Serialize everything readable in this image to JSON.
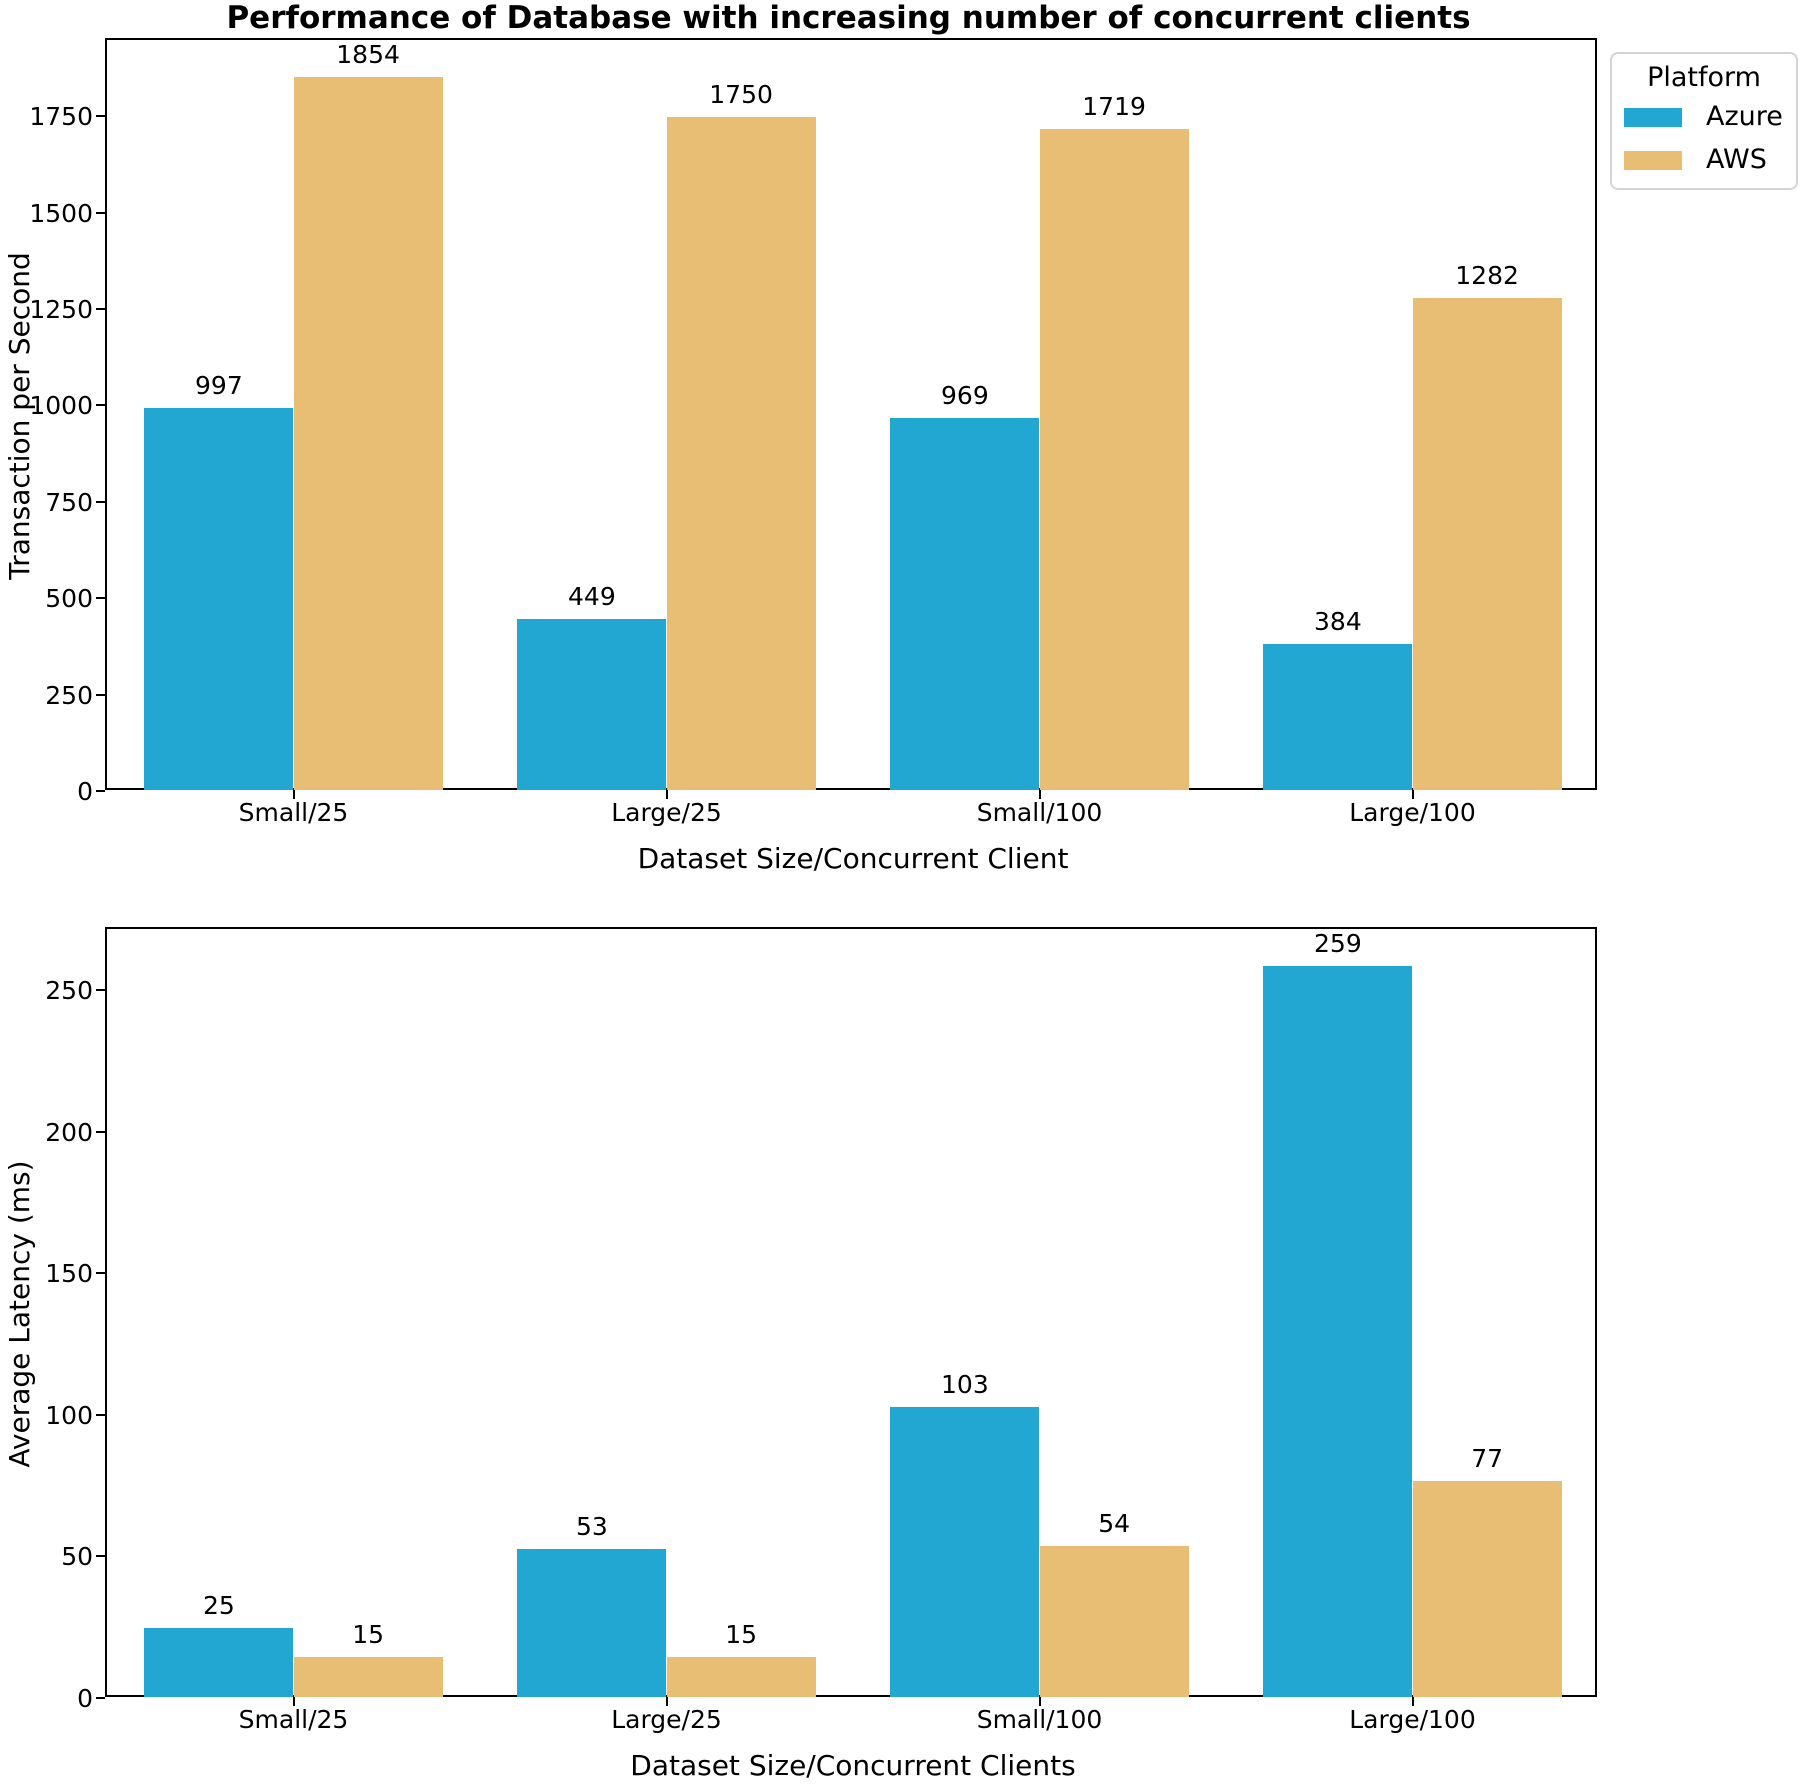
{
  "title": "Performance of Database with increasing number of concurrent clients",
  "legend": {
    "title": "Platform",
    "entries": [
      {
        "label": "Azure",
        "color": "#22a7d2"
      },
      {
        "label": "AWS",
        "color": "#e8bd74"
      }
    ]
  },
  "colors": {
    "azure": "#22a7d2",
    "aws": "#e8bd74",
    "axis": "#000000"
  },
  "chart_data": [
    {
      "type": "bar",
      "name": "transactions-per-second",
      "categories": [
        "Small/25",
        "Large/25",
        "Small/100",
        "Large/100"
      ],
      "series": [
        {
          "name": "Azure",
          "color": "#22a7d2",
          "values": [
            997,
            449,
            969,
            384
          ]
        },
        {
          "name": "AWS",
          "color": "#e8bd74",
          "values": [
            1854,
            1750,
            1719,
            1282
          ]
        }
      ],
      "xlabel": "Dataset Size/Concurrent Client",
      "ylabel": "Transaction per Second",
      "ylim": [
        0,
        1950
      ],
      "yticks": [
        0,
        250,
        500,
        750,
        1000,
        1250,
        1500,
        1750
      ],
      "bar_value_labels": true,
      "grid": false,
      "legend_position": "outside upper right"
    },
    {
      "type": "bar",
      "name": "average-latency",
      "categories": [
        "Small/25",
        "Large/25",
        "Small/100",
        "Large/100"
      ],
      "series": [
        {
          "name": "Azure",
          "color": "#22a7d2",
          "values": [
            25,
            53,
            103,
            259
          ]
        },
        {
          "name": "AWS",
          "color": "#e8bd74",
          "values": [
            15,
            15,
            54,
            77
          ]
        }
      ],
      "xlabel": "Dataset Size/Concurrent Clients",
      "ylabel": "Average Latency (ms)",
      "ylim": [
        0,
        272
      ],
      "yticks": [
        0,
        50,
        100,
        150,
        200,
        250
      ],
      "bar_value_labels": true,
      "grid": false,
      "legend_position": "none"
    }
  ]
}
